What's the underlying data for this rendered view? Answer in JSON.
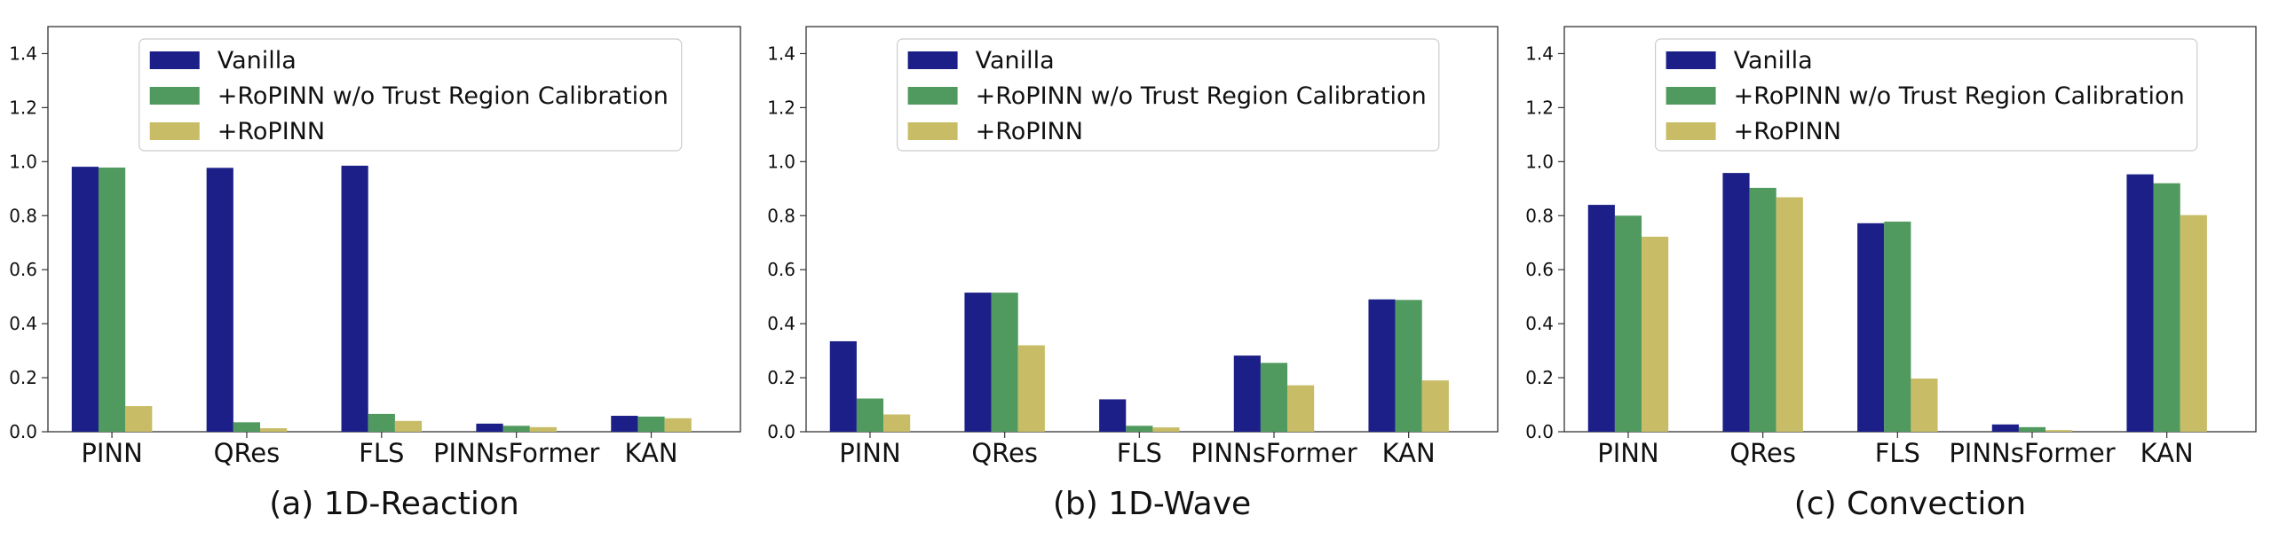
{
  "legend_entries": [
    "Vanilla",
    "+RoPINN w/o Trust Region Calibration",
    "+RoPINN"
  ],
  "colors": {
    "Vanilla": "#1b1f87",
    "+RoPINN w/o Trust Region Calibration": "#519a5f",
    "+RoPINN": "#c8bd66"
  },
  "chart_data": [
    {
      "type": "bar",
      "title": "(a) 1D-Reaction",
      "categories": [
        "PINN",
        "QRes",
        "FLS",
        "PINNsFormer",
        "KAN"
      ],
      "ylim": [
        0,
        1.5
      ],
      "yticks": [
        0.0,
        0.2,
        0.4,
        0.6,
        0.8,
        1.0,
        1.2,
        1.4
      ],
      "legend_position": "top-center",
      "grid": false,
      "series": [
        {
          "name": "Vanilla",
          "values": [
            0.981,
            0.977,
            0.985,
            0.03,
            0.059
          ]
        },
        {
          "name": "+RoPINN w/o Trust Region Calibration",
          "values": [
            0.978,
            0.035,
            0.066,
            0.022,
            0.056
          ]
        },
        {
          "name": "+RoPINN",
          "values": [
            0.095,
            0.013,
            0.04,
            0.017,
            0.05
          ]
        }
      ]
    },
    {
      "type": "bar",
      "title": "(b) 1D-Wave",
      "categories": [
        "PINN",
        "QRes",
        "FLS",
        "PINNsFormer",
        "KAN"
      ],
      "ylim": [
        0,
        1.5
      ],
      "yticks": [
        0.0,
        0.2,
        0.4,
        0.6,
        0.8,
        1.0,
        1.2,
        1.4
      ],
      "legend_position": "top-center",
      "grid": false,
      "series": [
        {
          "name": "Vanilla",
          "values": [
            0.335,
            0.515,
            0.12,
            0.282,
            0.49
          ]
        },
        {
          "name": "+RoPINN w/o Trust Region Calibration",
          "values": [
            0.123,
            0.515,
            0.022,
            0.255,
            0.488
          ]
        },
        {
          "name": "+RoPINN",
          "values": [
            0.064,
            0.32,
            0.016,
            0.172,
            0.19
          ]
        }
      ]
    },
    {
      "type": "bar",
      "title": "(c) Convection",
      "categories": [
        "PINN",
        "QRes",
        "FLS",
        "PINNsFormer",
        "KAN"
      ],
      "ylim": [
        0,
        1.5
      ],
      "yticks": [
        0.0,
        0.2,
        0.4,
        0.6,
        0.8,
        1.0,
        1.2,
        1.4
      ],
      "legend_position": "top-center",
      "grid": false,
      "series": [
        {
          "name": "Vanilla",
          "values": [
            0.84,
            0.958,
            0.772,
            0.027,
            0.953
          ]
        },
        {
          "name": "+RoPINN w/o Trust Region Calibration",
          "values": [
            0.8,
            0.903,
            0.778,
            0.017,
            0.92
          ]
        },
        {
          "name": "+RoPINN",
          "values": [
            0.722,
            0.868,
            0.197,
            0.006,
            0.802
          ]
        }
      ]
    }
  ]
}
